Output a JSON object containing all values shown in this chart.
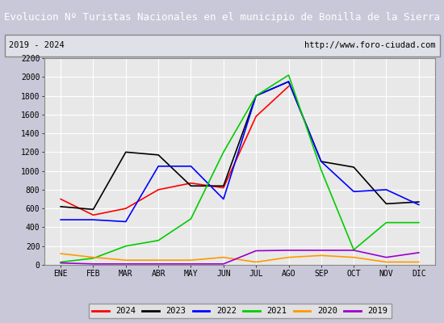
{
  "title": "Evolucion Nº Turistas Nacionales en el municipio de Bonilla de la Sierra",
  "subtitle_left": "2019 - 2024",
  "subtitle_right": "http://www.foro-ciudad.com",
  "months": [
    "ENE",
    "FEB",
    "MAR",
    "ABR",
    "MAY",
    "JUN",
    "JUL",
    "AGO",
    "SEP",
    "OCT",
    "NOV",
    "DIC"
  ],
  "series": {
    "2024": {
      "color": "#ff0000",
      "data": [
        700,
        530,
        600,
        800,
        870,
        820,
        1580,
        1900,
        null,
        null,
        null,
        null
      ]
    },
    "2023": {
      "color": "#000000",
      "data": [
        620,
        590,
        1200,
        1170,
        840,
        840,
        1800,
        1950,
        1100,
        1040,
        650,
        670
      ]
    },
    "2022": {
      "color": "#0000ff",
      "data": [
        480,
        480,
        460,
        1050,
        1050,
        700,
        1800,
        1950,
        1100,
        780,
        800,
        640
      ]
    },
    "2021": {
      "color": "#00cc00",
      "data": [
        30,
        70,
        200,
        260,
        490,
        1200,
        1800,
        2020,
        1010,
        160,
        450,
        450
      ]
    },
    "2020": {
      "color": "#ff9900",
      "data": [
        120,
        80,
        50,
        50,
        50,
        80,
        30,
        80,
        100,
        80,
        30,
        30
      ]
    },
    "2019": {
      "color": "#9900cc",
      "data": [
        20,
        10,
        10,
        10,
        10,
        10,
        150,
        155,
        155,
        155,
        80,
        130
      ]
    }
  },
  "ylim": [
    0,
    2200
  ],
  "yticks": [
    0,
    200,
    400,
    600,
    800,
    1000,
    1200,
    1400,
    1600,
    1800,
    2000,
    2200
  ],
  "title_bg_color": "#4472c4",
  "title_font_color": "#ffffff",
  "plot_bg_color": "#e8e8e8",
  "grid_color": "#ffffff",
  "outer_bg_color": "#c8c8d8",
  "legend_order": [
    "2024",
    "2023",
    "2022",
    "2021",
    "2020",
    "2019"
  ]
}
